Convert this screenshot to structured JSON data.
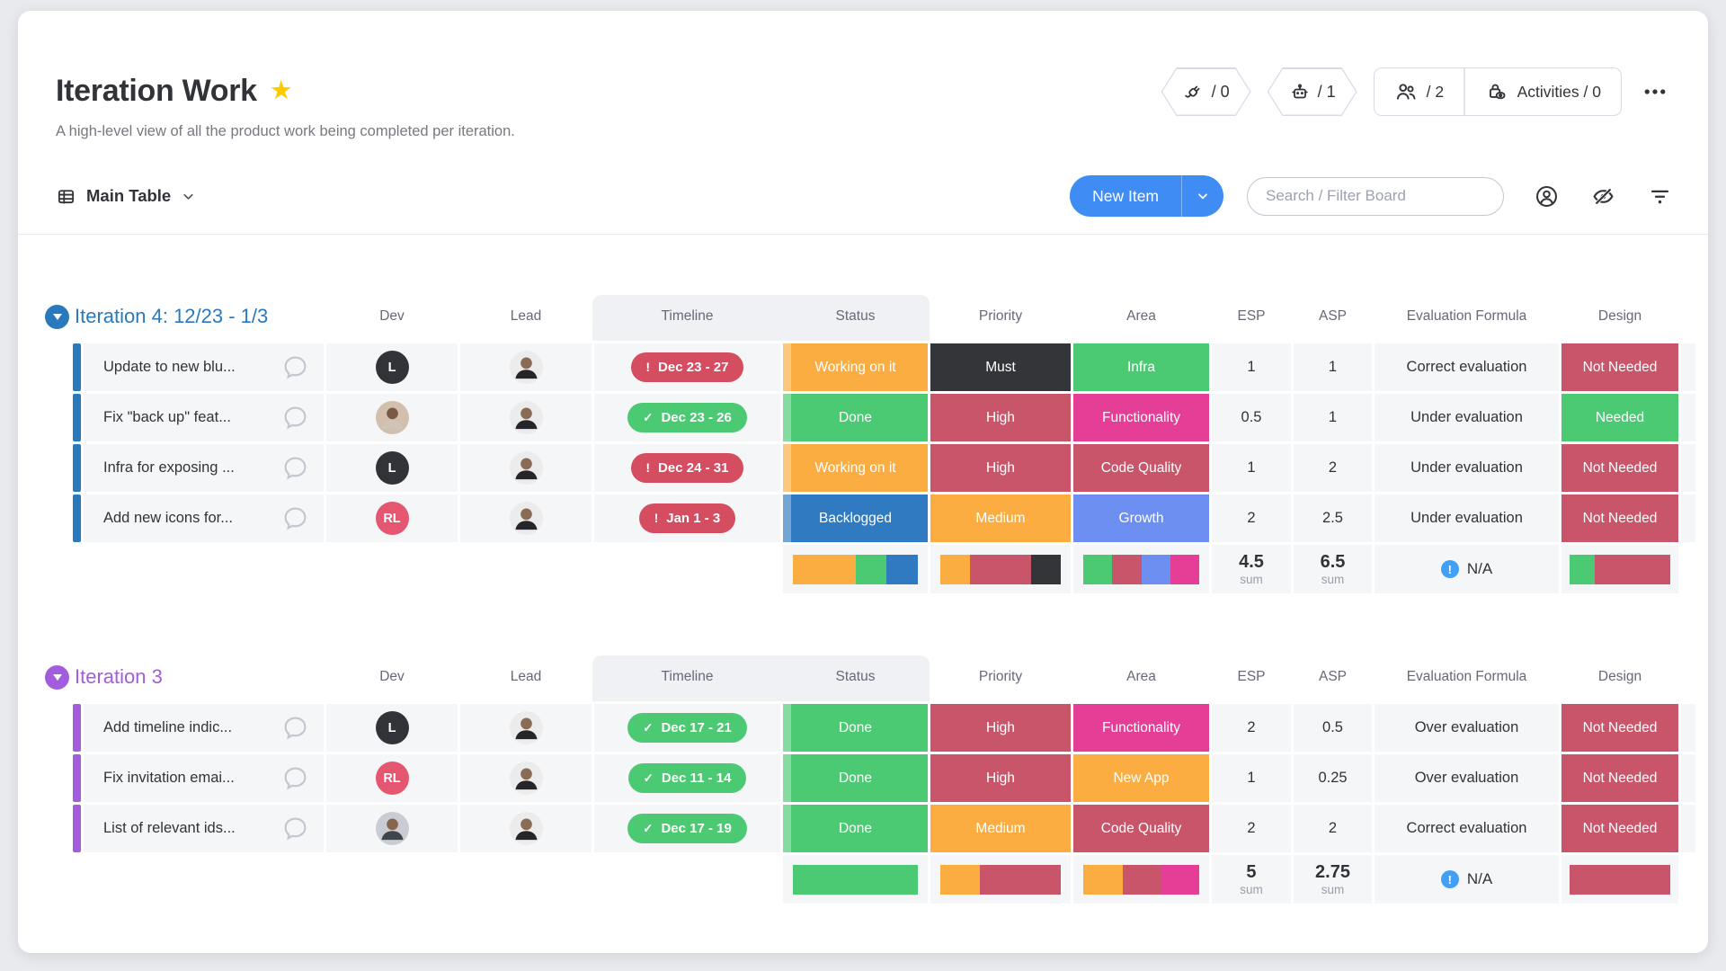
{
  "page": {
    "title": "Iteration Work",
    "subtitle": "A high-level view of all the product work being completed per iteration."
  },
  "top_actions": {
    "integrations_count": "/ 0",
    "automations_count": "/ 1",
    "members_count": "/ 2",
    "activities_label": "Activities / 0"
  },
  "toolbar": {
    "view_tab": "Main Table",
    "new_item_label": "New Item",
    "search_placeholder": "Search / Filter Board"
  },
  "columns": [
    "Dev",
    "Lead",
    "Timeline",
    "Status",
    "Priority",
    "Area",
    "ESP",
    "ASP",
    "Evaluation Formula",
    "Design"
  ],
  "sum_label": "sum",
  "colors": {
    "accent_blue": "#3f8cf5",
    "orange": "#fbad41",
    "green": "#4bc973",
    "pill_red": "#d44d61",
    "red": "#c9556a",
    "dark": "#333538",
    "backlog_blue": "#2f7ac0",
    "growth_blue": "#6d8ff1",
    "pink": "#e53e96",
    "star_yellow": "#ffcb00",
    "info_blue": "#41a0f5",
    "group1": "#2b79bd",
    "group2": "#a25ddc"
  },
  "groups": [
    {
      "title": "Iteration 4: 12/23 - 1/3",
      "color_key": "group1",
      "rows": [
        {
          "name": "Update to new blu...",
          "dev": {
            "type": "initials",
            "label": "L",
            "bg": "#323338"
          },
          "lead": {
            "type": "photo",
            "bg": "#ececec",
            "head": "#8a6b55",
            "body": "#26262a"
          },
          "timeline": {
            "text": "Dec 23 - 27",
            "state": "overdue"
          },
          "status": {
            "label": "Working on it",
            "color": "orange"
          },
          "priority": {
            "label": "Must",
            "color": "dark"
          },
          "area": {
            "label": "Infra",
            "color": "green"
          },
          "esp": "1",
          "asp": "1",
          "evaluation": "Correct evaluation",
          "design": {
            "label": "Not Needed",
            "color": "red"
          }
        },
        {
          "name": "Fix \"back up\" feat...",
          "dev": {
            "type": "photo",
            "bg": "#d3bfae",
            "head": "#7a5a44",
            "body": "#cfc4b8"
          },
          "lead": {
            "type": "photo",
            "bg": "#ececec",
            "head": "#8a6b55",
            "body": "#26262a"
          },
          "timeline": {
            "text": "Dec 23 - 26",
            "state": "done"
          },
          "status": {
            "label": "Done",
            "color": "green"
          },
          "priority": {
            "label": "High",
            "color": "red"
          },
          "area": {
            "label": "Functionality",
            "color": "pink"
          },
          "esp": "0.5",
          "asp": "1",
          "evaluation": "Under evaluation",
          "design": {
            "label": "Needed",
            "color": "green"
          }
        },
        {
          "name": "Infra for exposing ...",
          "dev": {
            "type": "initials",
            "label": "L",
            "bg": "#323338"
          },
          "lead": {
            "type": "photo",
            "bg": "#ececec",
            "head": "#8a6b55",
            "body": "#26262a"
          },
          "timeline": {
            "text": "Dec 24 - 31",
            "state": "overdue"
          },
          "status": {
            "label": "Working on it",
            "color": "orange"
          },
          "priority": {
            "label": "High",
            "color": "red"
          },
          "area": {
            "label": "Code Quality",
            "color": "red"
          },
          "esp": "1",
          "asp": "2",
          "evaluation": "Under evaluation",
          "design": {
            "label": "Not Needed",
            "color": "red"
          }
        },
        {
          "name": "Add new icons for...",
          "dev": {
            "type": "initials",
            "label": "RL",
            "bg": "#e55670"
          },
          "lead": {
            "type": "photo",
            "bg": "#ececec",
            "head": "#8a6b55",
            "body": "#26262a"
          },
          "timeline": {
            "text": "Jan 1 - 3",
            "state": "overdue"
          },
          "status": {
            "label": "Backlogged",
            "color": "backlog_blue"
          },
          "priority": {
            "label": "Medium",
            "color": "orange"
          },
          "area": {
            "label": "Growth",
            "color": "growth_blue"
          },
          "esp": "2",
          "asp": "2.5",
          "evaluation": "Under evaluation",
          "design": {
            "label": "Not Needed",
            "color": "red"
          }
        }
      ],
      "summary": {
        "status_bar": [
          {
            "color": "orange",
            "pct": 50
          },
          {
            "color": "green",
            "pct": 25
          },
          {
            "color": "backlog_blue",
            "pct": 25
          }
        ],
        "priority_bar": [
          {
            "color": "orange",
            "pct": 25
          },
          {
            "color": "red",
            "pct": 50
          },
          {
            "color": "dark",
            "pct": 25
          }
        ],
        "area_bar": [
          {
            "color": "green",
            "pct": 25
          },
          {
            "color": "red",
            "pct": 25
          },
          {
            "color": "growth_blue",
            "pct": 25
          },
          {
            "color": "pink",
            "pct": 25
          }
        ],
        "esp_sum": "4.5",
        "asp_sum": "6.5",
        "evaluation": "N/A",
        "design_bar": [
          {
            "color": "green",
            "pct": 25
          },
          {
            "color": "red",
            "pct": 75
          }
        ]
      }
    },
    {
      "title": "Iteration 3",
      "color_key": "group2",
      "rows": [
        {
          "name": "Add timeline indic...",
          "dev": {
            "type": "initials",
            "label": "L",
            "bg": "#323338"
          },
          "lead": {
            "type": "photo",
            "bg": "#ececec",
            "head": "#8a6b55",
            "body": "#26262a"
          },
          "timeline": {
            "text": "Dec 17 - 21",
            "state": "done"
          },
          "status": {
            "label": "Done",
            "color": "green"
          },
          "priority": {
            "label": "High",
            "color": "red"
          },
          "area": {
            "label": "Functionality",
            "color": "pink"
          },
          "esp": "2",
          "asp": "0.5",
          "evaluation": "Over evaluation",
          "design": {
            "label": "Not Needed",
            "color": "red"
          }
        },
        {
          "name": "Fix invitation emai...",
          "dev": {
            "type": "initials",
            "label": "RL",
            "bg": "#e55670"
          },
          "lead": {
            "type": "photo",
            "bg": "#ececec",
            "head": "#8a6b55",
            "body": "#26262a"
          },
          "timeline": {
            "text": "Dec 11 - 14",
            "state": "done"
          },
          "status": {
            "label": "Done",
            "color": "green"
          },
          "priority": {
            "label": "High",
            "color": "red"
          },
          "area": {
            "label": "New App",
            "color": "orange"
          },
          "esp": "1",
          "asp": "0.25",
          "evaluation": "Over evaluation",
          "design": {
            "label": "Not Needed",
            "color": "red"
          }
        },
        {
          "name": "List of relevant ids...",
          "dev": {
            "type": "photo",
            "bg": "#c9cdd3",
            "head": "#87654e",
            "body": "#3f454d"
          },
          "lead": {
            "type": "photo",
            "bg": "#ececec",
            "head": "#8a6b55",
            "body": "#26262a"
          },
          "timeline": {
            "text": "Dec 17 - 19",
            "state": "done"
          },
          "status": {
            "label": "Done",
            "color": "green"
          },
          "priority": {
            "label": "Medium",
            "color": "orange"
          },
          "area": {
            "label": "Code Quality",
            "color": "red"
          },
          "esp": "2",
          "asp": "2",
          "evaluation": "Correct evaluation",
          "design": {
            "label": "Not Needed",
            "color": "red"
          }
        }
      ],
      "summary": {
        "status_bar": [
          {
            "color": "green",
            "pct": 100
          }
        ],
        "priority_bar": [
          {
            "color": "orange",
            "pct": 33
          },
          {
            "color": "red",
            "pct": 67
          }
        ],
        "area_bar": [
          {
            "color": "orange",
            "pct": 34
          },
          {
            "color": "red",
            "pct": 33
          },
          {
            "color": "pink",
            "pct": 33
          }
        ],
        "esp_sum": "5",
        "asp_sum": "2.75",
        "evaluation": "N/A",
        "design_bar": [
          {
            "color": "red",
            "pct": 100
          }
        ]
      }
    }
  ]
}
